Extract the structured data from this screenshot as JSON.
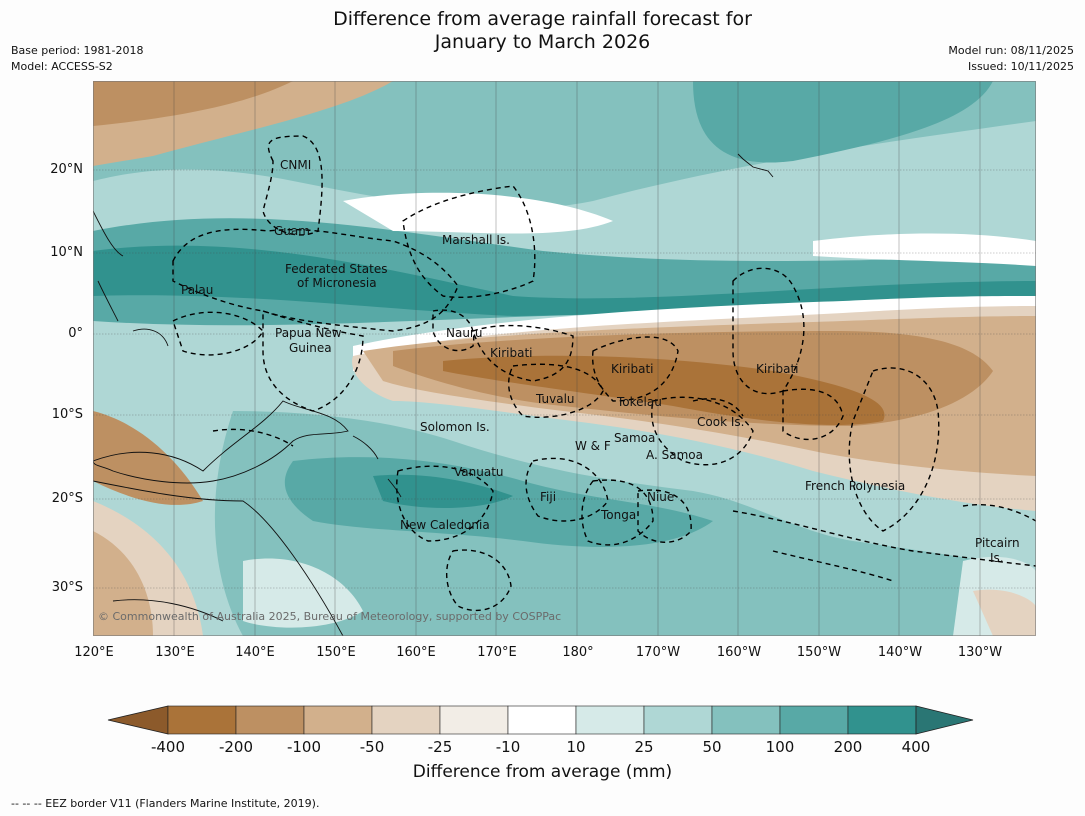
{
  "title_line1": "Difference from average rainfall forecast for",
  "title_line2": "January to March 2026",
  "base_period": "Base period: 1981-2018",
  "model": "Model: ACCESS-S2",
  "model_run": "Model run: 08/11/2025",
  "issued": "Issued: 10/11/2025",
  "copyright": "© Commonwealth of Australia 2025, Bureau of Meteorology, supported by COSPPac",
  "footnote": "-- -- -- EEZ border V11 (Flanders Marine Institute, 2019).",
  "lat_ticks": [
    "20°N",
    "10°N",
    "0°",
    "10°S",
    "20°S",
    "30°S"
  ],
  "lon_ticks": [
    "120°E",
    "130°E",
    "140°E",
    "150°E",
    "160°E",
    "170°E",
    "180°",
    "170°W",
    "160°W",
    "150°W",
    "140°W",
    "130°W"
  ],
  "places": [
    {
      "name": "CNMI"
    },
    {
      "name": "Guam"
    },
    {
      "name": "Marshall Is."
    },
    {
      "name": "Federated States"
    },
    {
      "name": "of Micronesia"
    },
    {
      "name": "Palau"
    },
    {
      "name": "Papua New"
    },
    {
      "name": "Guinea"
    },
    {
      "name": "Nauru"
    },
    {
      "name": "Kiribati"
    },
    {
      "name": "Kiribati"
    },
    {
      "name": "Kiribati"
    },
    {
      "name": "Tuvalu"
    },
    {
      "name": "Tokelau"
    },
    {
      "name": "Cook Is."
    },
    {
      "name": "Solomon Is."
    },
    {
      "name": "Samoa"
    },
    {
      "name": "W & F"
    },
    {
      "name": "A. Samoa"
    },
    {
      "name": "Vanuatu"
    },
    {
      "name": "Fiji"
    },
    {
      "name": "Niue"
    },
    {
      "name": "Tonga"
    },
    {
      "name": "New Caledonia"
    },
    {
      "name": "French Polynesia"
    },
    {
      "name": "Pitcairn"
    },
    {
      "name": "Is."
    }
  ],
  "colorbar": {
    "title": "Difference from average (mm)",
    "labels": [
      "-400",
      "-200",
      "-100",
      "-50",
      "-25",
      "-10",
      "10",
      "25",
      "50",
      "100",
      "200",
      "400"
    ],
    "colors": [
      "#8c5a2b",
      "#aa7339",
      "#bd9062",
      "#d2b08c",
      "#e4d3c1",
      "#f2ede6",
      "#ffffff",
      "#d6eae8",
      "#afd7d5",
      "#84c1be",
      "#58a9a6",
      "#31928e",
      "#2a7674"
    ]
  }
}
